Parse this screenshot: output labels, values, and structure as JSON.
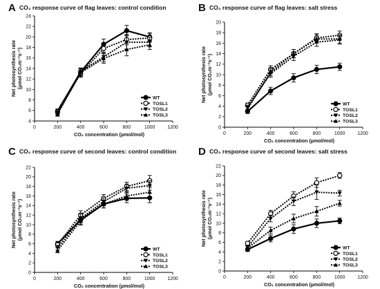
{
  "chart_data": [
    {
      "type": "line",
      "panel_label": "A",
      "title": "CO₂ response curve of flag leaves:  control condition",
      "xlabel": "CO₂ concentration (µmol/mol)",
      "ylabel": [
        "Net photosynthesis rate",
        "(µmol CO₂m⁻²s⁻¹)"
      ],
      "xlim": [
        0,
        1200
      ],
      "ylim": [
        4,
        24
      ],
      "xticks": [
        0,
        200,
        400,
        600,
        800,
        1000,
        1200
      ],
      "yticks": [
        4,
        6,
        8,
        10,
        12,
        14,
        16,
        18,
        20,
        22,
        24
      ],
      "x": [
        200,
        400,
        600,
        800,
        1000
      ],
      "legend_position": "bottom-right",
      "series": [
        {
          "name": "WT",
          "values": [
            5.9,
            13.3,
            18.6,
            21.2,
            20.0
          ],
          "errors": [
            0.4,
            0.7,
            1.0,
            1.0,
            0.8
          ],
          "marker": "filled-circle",
          "style": "solid"
        },
        {
          "name": "TOSL1",
          "values": [
            5.7,
            13.0,
            17.8,
            19.5,
            19.8
          ],
          "errors": [
            0.4,
            0.7,
            0.9,
            1.0,
            0.8
          ],
          "marker": "open-circle",
          "style": "dotted"
        },
        {
          "name": "TOSL2",
          "values": [
            5.5,
            13.4,
            16.2,
            19.0,
            19.0
          ],
          "errors": [
            0.4,
            0.7,
            0.9,
            1.3,
            0.9
          ],
          "marker": "filled-triangle-down",
          "style": "dotted"
        },
        {
          "name": "TOSL3",
          "values": [
            5.3,
            13.2,
            15.9,
            17.6,
            18.5
          ],
          "errors": [
            0.4,
            0.7,
            0.9,
            1.2,
            0.9
          ],
          "marker": "filled-triangle-up",
          "style": "dotted"
        }
      ]
    },
    {
      "type": "line",
      "panel_label": "B",
      "title": "CO₂ response curve of flag leaves: salt stress",
      "xlabel": "CO₂ concentration (µmol/mol)",
      "ylabel": [
        "Net photosynthesis rate",
        "(µmol CO₂m⁻²s⁻¹)"
      ],
      "xlim": [
        0,
        1200
      ],
      "ylim": [
        0,
        20
      ],
      "xticks": [
        0,
        200,
        400,
        600,
        800,
        1000,
        1200
      ],
      "yticks": [
        0,
        2,
        4,
        6,
        8,
        10,
        12,
        14,
        16,
        18,
        20
      ],
      "x": [
        200,
        400,
        600,
        800,
        1000
      ],
      "legend_position": "bottom-right",
      "series": [
        {
          "name": "WT",
          "values": [
            3.0,
            6.9,
            9.4,
            11.0,
            11.5
          ],
          "errors": [
            0.4,
            0.7,
            0.8,
            0.8,
            0.7
          ],
          "marker": "filled-circle",
          "style": "solid"
        },
        {
          "name": "TOSL1",
          "values": [
            4.2,
            11.0,
            14.0,
            17.0,
            17.5
          ],
          "errors": [
            0.4,
            0.7,
            0.8,
            0.8,
            0.8
          ],
          "marker": "open-circle",
          "style": "dotted"
        },
        {
          "name": "TOSL2",
          "values": [
            3.8,
            10.2,
            13.5,
            16.2,
            16.6
          ],
          "errors": [
            0.4,
            0.7,
            0.8,
            0.8,
            0.8
          ],
          "marker": "filled-triangle-down",
          "style": "dotted"
        },
        {
          "name": "TOSL3",
          "values": [
            3.5,
            10.5,
            14.0,
            16.8,
            16.8
          ],
          "errors": [
            0.4,
            0.7,
            0.8,
            0.8,
            0.8
          ],
          "marker": "filled-triangle-up",
          "style": "dotted"
        }
      ]
    },
    {
      "type": "line",
      "panel_label": "C",
      "title": "CO₂ response curve of second leaves: control condition",
      "xlabel": "CO₂ concentration (µmol/mol)",
      "ylabel": [
        "Net photosynthesis rate",
        "(µmol CO₂m⁻²s⁻¹)"
      ],
      "xlim": [
        0,
        1200
      ],
      "ylim": [
        0,
        22
      ],
      "xticks": [
        0,
        200,
        400,
        600,
        800,
        1000,
        1200
      ],
      "yticks": [
        0,
        2,
        4,
        6,
        8,
        10,
        12,
        14,
        16,
        18,
        20,
        22
      ],
      "x": [
        200,
        400,
        600,
        800,
        1000
      ],
      "legend_position": "bottom-right",
      "series": [
        {
          "name": "WT",
          "values": [
            6.0,
            11.0,
            14.3,
            15.5,
            15.6
          ],
          "errors": [
            0.5,
            0.9,
            0.8,
            0.9,
            1.0
          ],
          "marker": "filled-circle",
          "style": "solid"
        },
        {
          "name": "TOSL1",
          "values": [
            5.8,
            12.0,
            15.5,
            18.0,
            19.2
          ],
          "errors": [
            0.5,
            0.9,
            0.8,
            0.9,
            1.1
          ],
          "marker": "open-circle",
          "style": "dotted"
        },
        {
          "name": "TOSL2",
          "values": [
            5.2,
            11.3,
            14.8,
            17.6,
            18.2
          ],
          "errors": [
            0.5,
            0.9,
            0.8,
            0.9,
            1.0
          ],
          "marker": "filled-triangle-down",
          "style": "dotted"
        },
        {
          "name": "TOSL3",
          "values": [
            4.6,
            10.8,
            14.3,
            16.0,
            16.8
          ],
          "errors": [
            0.5,
            0.9,
            0.8,
            0.9,
            1.0
          ],
          "marker": "filled-triangle-up",
          "style": "dotted"
        }
      ]
    },
    {
      "type": "line",
      "panel_label": "D",
      "title": "CO₂ response curve of second leaves: salt stress",
      "xlabel": "CO₂ concentration (µmol/mol)",
      "ylabel": [
        "Net photosynthesis rate",
        "(µmol CO₂m⁻²s⁻¹)"
      ],
      "xlim": [
        0,
        1200
      ],
      "ylim": [
        0,
        22
      ],
      "xticks": [
        0,
        200,
        400,
        600,
        800,
        1000,
        1200
      ],
      "yticks": [
        0,
        2,
        4,
        6,
        8,
        10,
        12,
        14,
        16,
        18,
        20,
        22
      ],
      "x": [
        200,
        400,
        600,
        800,
        1000
      ],
      "legend_position": "bottom-right",
      "series": [
        {
          "name": "WT",
          "values": [
            4.5,
            6.8,
            8.8,
            10.0,
            10.5
          ],
          "errors": [
            0.4,
            0.7,
            0.9,
            0.9,
            0.6
          ],
          "marker": "filled-circle",
          "style": "solid"
        },
        {
          "name": "TOSL1",
          "values": [
            5.8,
            12.0,
            15.7,
            18.5,
            20.0
          ],
          "errors": [
            0.4,
            0.7,
            0.9,
            1.0,
            0.6
          ],
          "marker": "open-circle",
          "style": "dotted"
        },
        {
          "name": "TOSL2",
          "values": [
            5.0,
            11.0,
            14.6,
            16.5,
            16.3
          ],
          "errors": [
            0.4,
            0.7,
            0.9,
            1.5,
            0.6
          ],
          "marker": "filled-triangle-down",
          "style": "dotted"
        },
        {
          "name": "TOSL3",
          "values": [
            4.8,
            8.5,
            11.0,
            12.5,
            14.2
          ],
          "errors": [
            0.4,
            0.7,
            0.9,
            1.0,
            0.6
          ],
          "marker": "filled-triangle-up",
          "style": "dotted"
        }
      ]
    }
  ]
}
